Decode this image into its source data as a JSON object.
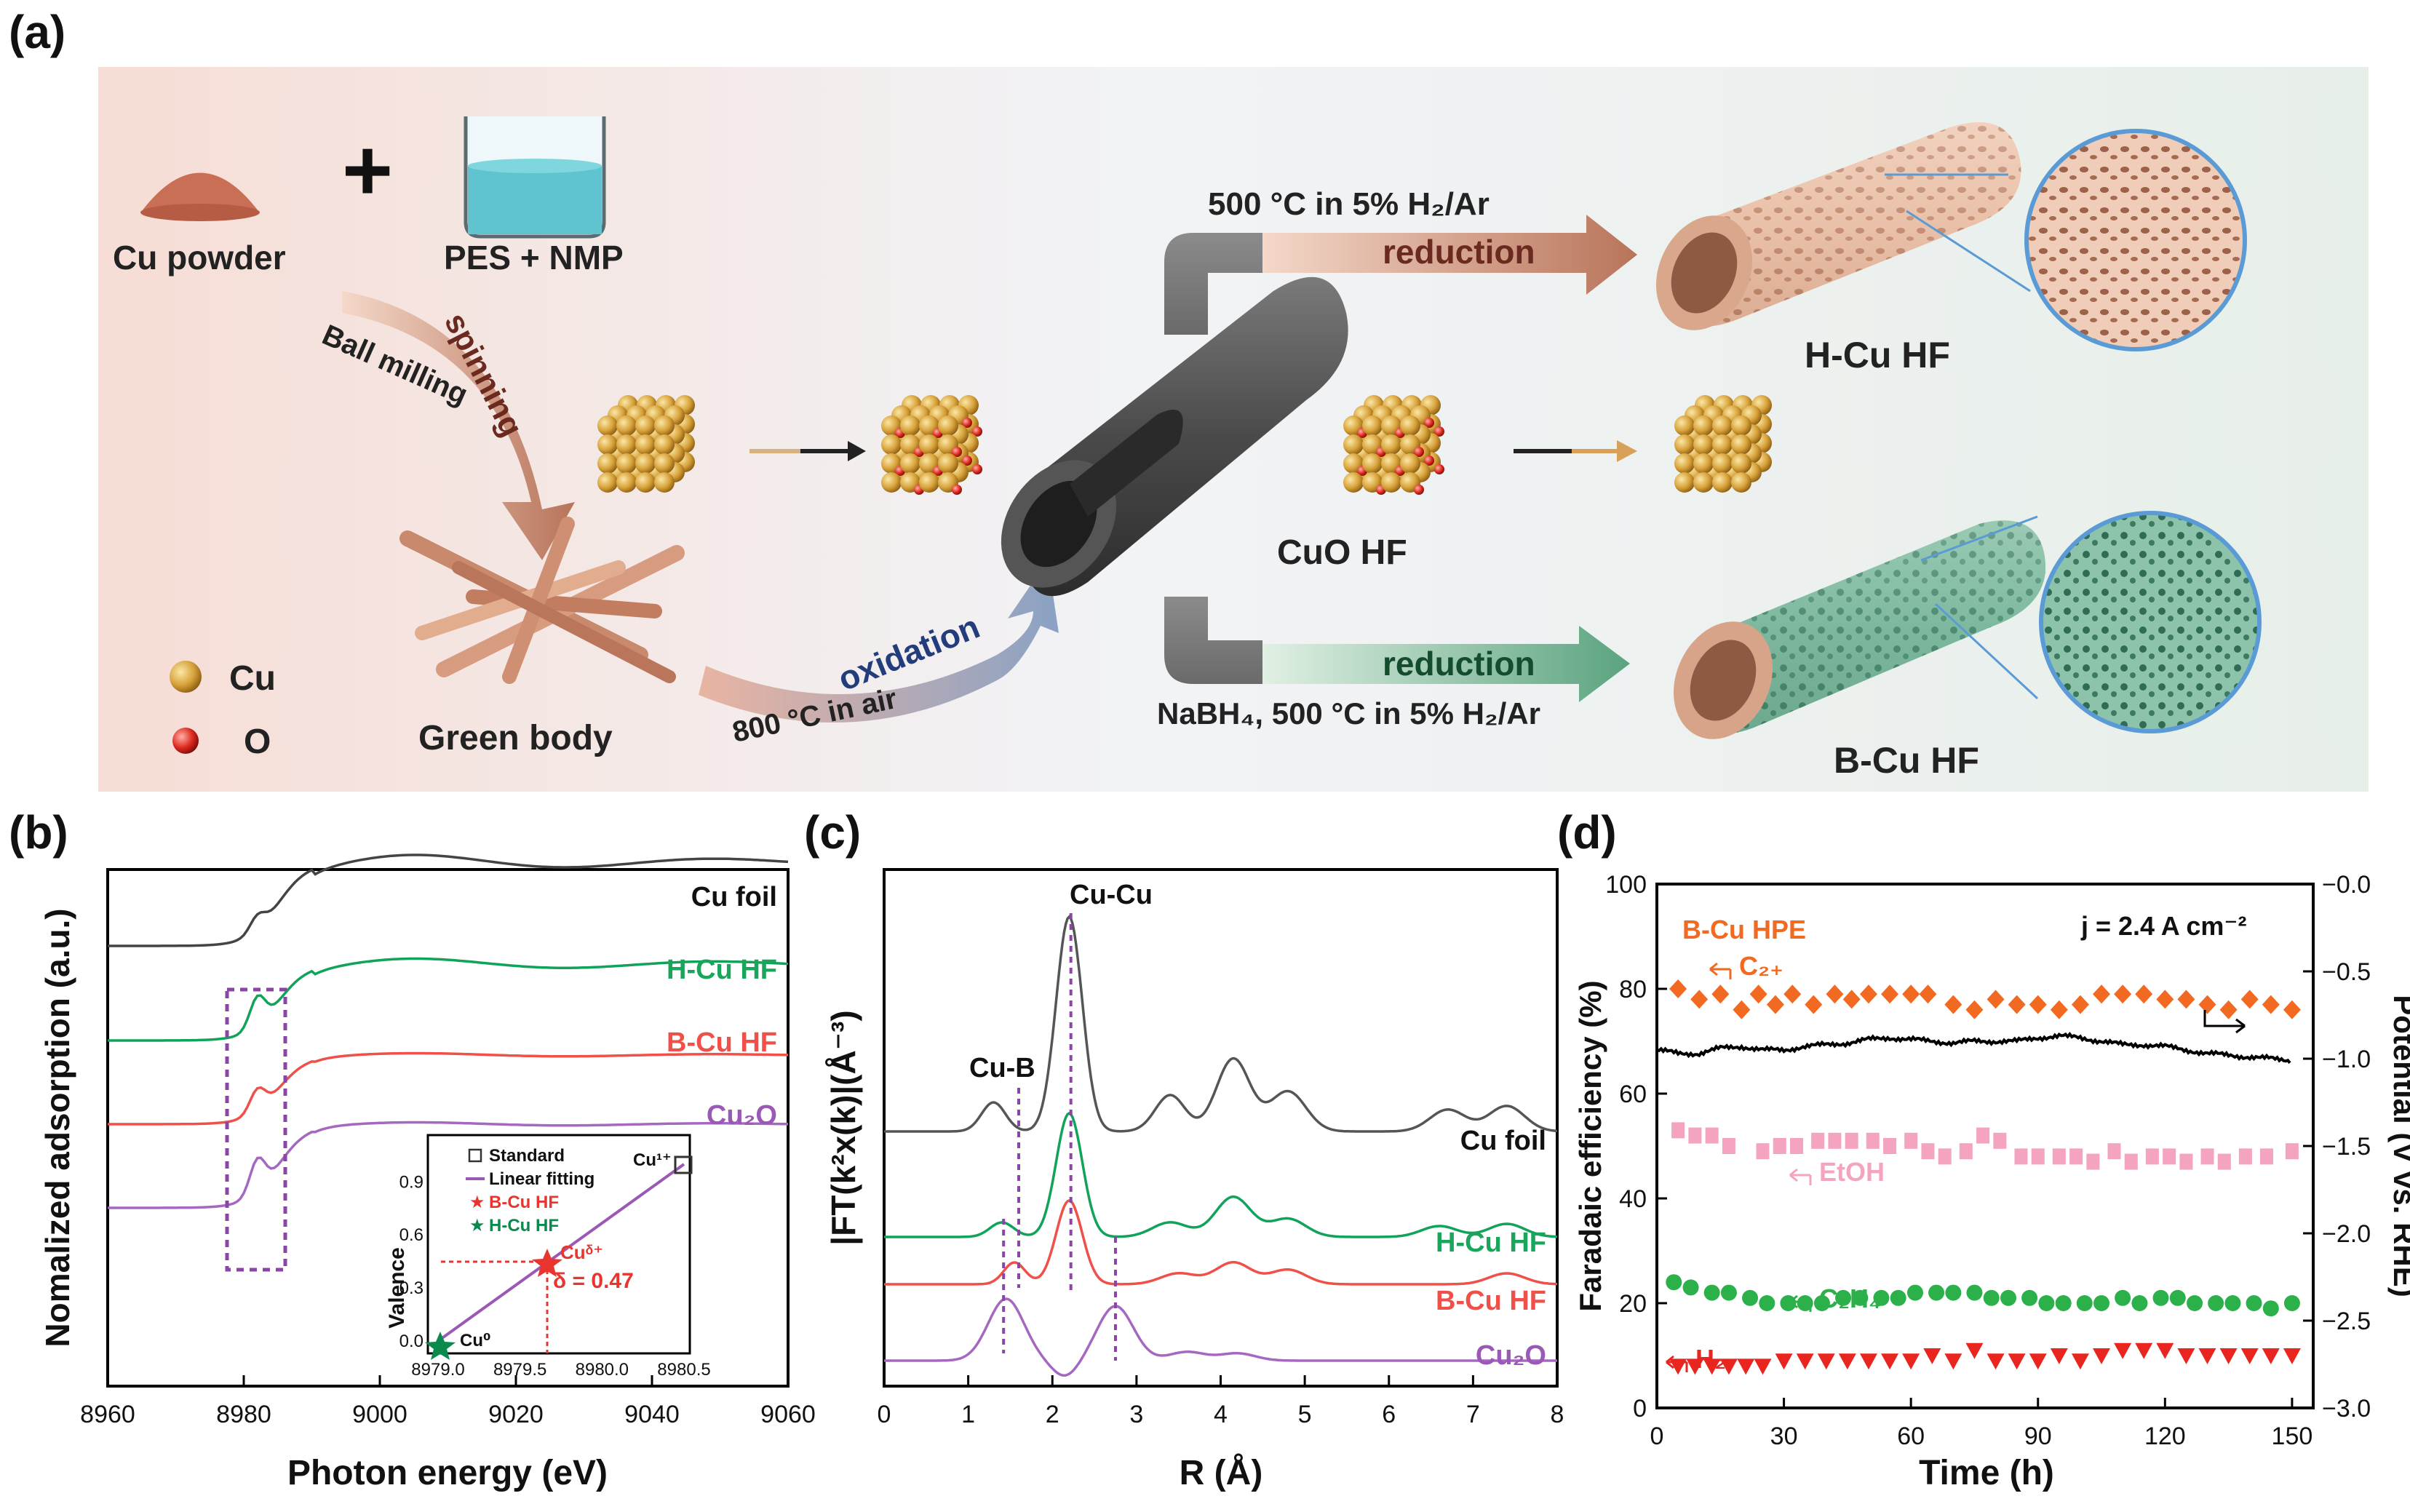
{
  "panel_a": {
    "label": "(a)",
    "cu_powder": "Cu powder",
    "plus": "+",
    "pes_nmp": "PES + NMP",
    "ball_milling": "Ball milling",
    "spinning": "spinning",
    "green_body": "Green body",
    "oxidation": "oxidation",
    "oxidation_cond": "800 °C in air",
    "cuo_hf": "CuO HF",
    "top_cond": "500 °C in 5% H₂/Ar",
    "top_reduction": "reduction",
    "bottom_reduction": "reduction",
    "bottom_cond": "NaBH₄, 500 °C in 5% H₂/Ar",
    "h_cu_hf": "H-Cu HF",
    "b_cu_hf": "B-Cu HF",
    "legend_cu": "Cu",
    "legend_o": "O",
    "colors": {
      "cu": "#d29a3a",
      "o": "#d62020",
      "h_tube": "#e6b79e",
      "b_tube": "#6fae93"
    }
  },
  "panel_b": {
    "label": "(b)",
    "ylabel": "Nomalized adsorption (a.u.)",
    "xlabel": "Photon energy (eV)",
    "xticks": [
      "8960",
      "8980",
      "9000",
      "9020",
      "9040",
      "9060"
    ],
    "series_labels": [
      "Cu foil",
      "H-Cu HF",
      "B-Cu HF",
      "Cu₂O"
    ],
    "inset": {
      "ylabel": "Valence",
      "xticks": [
        "8979.0",
        "8979.5",
        "8980.0",
        "8980.5"
      ],
      "yticks": [
        "0.0",
        "0.3",
        "0.6",
        "0.9"
      ],
      "legend": [
        "Standard",
        "Linear fitting",
        "B-Cu HF",
        "H-Cu HF"
      ],
      "cu1": "Cu¹⁺",
      "cu0": "Cu⁰",
      "cud": "Cuᵟ⁺",
      "delta": "δ = 0.47"
    }
  },
  "panel_c": {
    "label": "(c)",
    "ylabel": "|FT(k²x(k)|(Å⁻³)",
    "xlabel": "R (Å)",
    "xticks": [
      "0",
      "1",
      "2",
      "3",
      "4",
      "5",
      "6",
      "7",
      "8"
    ],
    "peak_cucu": "Cu-Cu",
    "peak_cub": "Cu-B",
    "series_labels": [
      "Cu foil",
      "H-Cu HF",
      "B-Cu HF",
      "Cu₂O"
    ]
  },
  "chart_data": {
    "type": "scatter",
    "title": "",
    "xlabel": "Time (h)",
    "ylabel": "Faradaic efficiency (%)",
    "y2label": "Potential (V vs. RHE)",
    "xlim": [
      0,
      155
    ],
    "ylim": [
      0,
      100
    ],
    "y2lim": [
      -3.0,
      0.0
    ],
    "xticks": [
      "0",
      "30",
      "60",
      "90",
      "120",
      "150"
    ],
    "yticks": [
      "0",
      "20",
      "40",
      "60",
      "80",
      "100"
    ],
    "y2ticks": [
      "-0.0",
      "-0.5",
      "-1.0",
      "-1.5",
      "-2.0",
      "-2.5",
      "-3.0"
    ],
    "annotation_title": "B-Cu HPE",
    "annotation_current": "j = 2.4 A cm⁻²",
    "series": [
      {
        "name": "C₂₊",
        "marker": "diamond",
        "color": "#f26a22",
        "x": [
          5,
          10,
          15,
          20,
          24,
          28,
          32,
          37,
          42,
          46,
          50,
          55,
          60,
          64,
          70,
          75,
          80,
          85,
          90,
          95,
          100,
          105,
          110,
          115,
          120,
          125,
          130,
          135,
          140,
          145,
          150
        ],
        "y": [
          80,
          78,
          79,
          76,
          79,
          77,
          79,
          77,
          79,
          78,
          79,
          79,
          79,
          79,
          77,
          76,
          78,
          77,
          77,
          76,
          77,
          79,
          79,
          79,
          78,
          78,
          77,
          76,
          78,
          77,
          76
        ]
      },
      {
        "name": "EtOH",
        "marker": "square",
        "color": "#f4a3c0",
        "x": [
          5,
          9,
          13,
          17,
          25,
          29,
          33,
          38,
          42,
          46,
          51,
          55,
          60,
          64,
          68,
          73,
          77,
          81,
          86,
          90,
          95,
          99,
          103,
          108,
          112,
          117,
          121,
          125,
          130,
          134,
          139,
          144,
          150
        ],
        "y": [
          53,
          52,
          52,
          50,
          49,
          50,
          50,
          51,
          51,
          51,
          51,
          50,
          51,
          49,
          48,
          49,
          52,
          51,
          48,
          48,
          48,
          48,
          47,
          49,
          47,
          48,
          48,
          47,
          48,
          47,
          48,
          48,
          49
        ]
      },
      {
        "name": "C₂H₄",
        "marker": "circle",
        "color": "#2bb04a",
        "x": [
          4,
          8,
          13,
          17,
          22,
          26,
          31,
          35,
          39,
          44,
          48,
          53,
          57,
          61,
          66,
          70,
          75,
          79,
          83,
          88,
          92,
          96,
          101,
          105,
          110,
          114,
          119,
          123,
          127,
          132,
          136,
          141,
          145,
          150
        ],
        "y": [
          24,
          23,
          22,
          22,
          21,
          20,
          20,
          20,
          20,
          21,
          21,
          21,
          21,
          22,
          22,
          22,
          22,
          21,
          21,
          21,
          20,
          20,
          20,
          20,
          21,
          20,
          21,
          21,
          20,
          20,
          20,
          20,
          19,
          20
        ]
      },
      {
        "name": "H₂",
        "marker": "triangle-down",
        "color": "#e8251f",
        "x": [
          5,
          9,
          13,
          17,
          21,
          25,
          30,
          35,
          40,
          45,
          50,
          55,
          60,
          65,
          70,
          75,
          80,
          85,
          90,
          95,
          100,
          105,
          110,
          115,
          120,
          125,
          130,
          135,
          140,
          145,
          150
        ],
        "y": [
          8,
          8,
          8,
          8,
          8,
          8,
          9,
          9,
          9,
          9,
          9,
          9,
          9,
          10,
          9,
          11,
          9,
          9,
          9,
          10,
          9,
          10,
          11,
          11,
          11,
          10,
          10,
          10,
          10,
          10,
          10
        ]
      },
      {
        "name": "Potential",
        "axis": "y2",
        "color": "#000000",
        "x": [
          0,
          5,
          10,
          15,
          20,
          25,
          30,
          35,
          40,
          45,
          50,
          55,
          60,
          65,
          70,
          75,
          80,
          85,
          90,
          95,
          100,
          105,
          110,
          115,
          120,
          125,
          130,
          135,
          140,
          145,
          150
        ],
        "y": [
          -0.95,
          -0.97,
          -0.97,
          -0.94,
          -0.93,
          -0.95,
          -0.95,
          -0.93,
          -0.92,
          -0.91,
          -0.89,
          -0.88,
          -0.89,
          -0.9,
          -0.91,
          -0.9,
          -0.9,
          -0.9,
          -0.88,
          -0.87,
          -0.88,
          -0.9,
          -0.92,
          -0.92,
          -0.93,
          -0.95,
          -0.97,
          -0.98,
          -0.99,
          -1.0,
          -1.01
        ]
      }
    ]
  }
}
